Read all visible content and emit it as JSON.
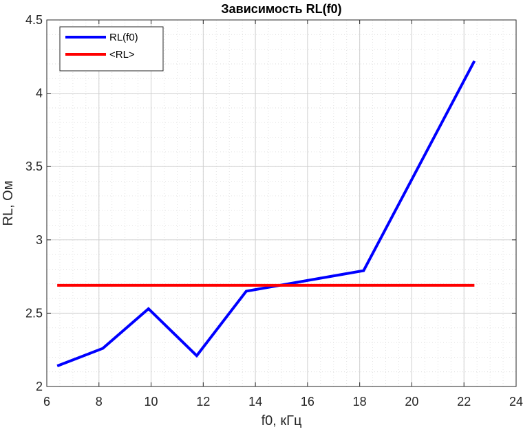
{
  "chart_data": {
    "type": "line",
    "title": "Зависимость RL(f0)",
    "xlabel": "f0, кГц",
    "ylabel": "RL, Ом",
    "xlim": [
      6,
      24
    ],
    "ylim": [
      2,
      4.5
    ],
    "xticks": [
      6,
      8,
      10,
      12,
      14,
      16,
      18,
      20,
      22,
      24
    ],
    "yticks": [
      2,
      2.5,
      3,
      3.5,
      4,
      4.5
    ],
    "xtick_labels": [
      "6",
      "8",
      "10",
      "12",
      "14",
      "16",
      "18",
      "20",
      "22",
      "24"
    ],
    "ytick_labels": [
      "2",
      "2.5",
      "3",
      "3.5",
      "4",
      "4.5"
    ],
    "grid": true,
    "minor_grid": true,
    "legend_position": "top-left",
    "series": [
      {
        "name": "RL(f0)",
        "color": "#0000ff",
        "x": [
          6.4,
          8.15,
          9.9,
          11.75,
          13.65,
          18.15,
          22.4
        ],
        "y": [
          2.14,
          2.26,
          2.53,
          2.21,
          2.65,
          2.79,
          4.22
        ]
      },
      {
        "name": "<RL>",
        "color": "#ff0000",
        "x": [
          6.4,
          22.4
        ],
        "y": [
          2.69,
          2.69
        ]
      }
    ]
  }
}
